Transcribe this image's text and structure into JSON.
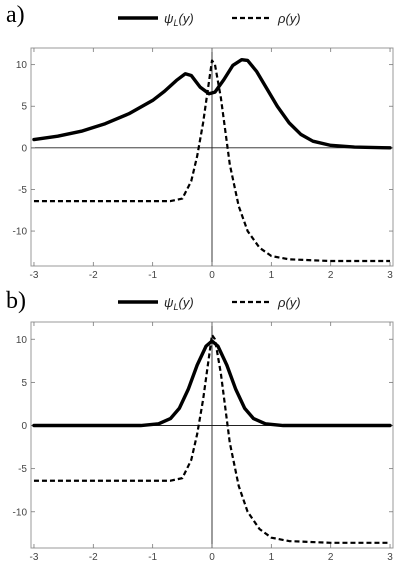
{
  "chart_data": [
    {
      "type": "line",
      "panel_label": "a)",
      "legend_position": "top",
      "grid": false,
      "xlim": [
        -3.05,
        3.05
      ],
      "ylim": [
        -14.2,
        12.0
      ],
      "x_ticks": [
        -3,
        -2,
        -1,
        0,
        1,
        2,
        3
      ],
      "y_ticks": [
        -10,
        -5,
        0,
        5,
        10
      ],
      "x_tick_labels": [
        "-3",
        "-2",
        "-1",
        "0",
        "1",
        "2",
        "3"
      ],
      "y_tick_labels": [
        "-10",
        "-5",
        "0",
        "5",
        "10"
      ],
      "series": [
        {
          "name": "ψL(y)",
          "name_main": "ψ",
          "name_sub": "L",
          "name_tail": "(y)",
          "style": "solid",
          "points": [
            [
              -3,
              1.0
            ],
            [
              -2.6,
              1.4
            ],
            [
              -2.2,
              2.0
            ],
            [
              -1.8,
              2.9
            ],
            [
              -1.4,
              4.1
            ],
            [
              -1.0,
              5.7
            ],
            [
              -0.8,
              6.8
            ],
            [
              -0.6,
              8.1
            ],
            [
              -0.45,
              8.9
            ],
            [
              -0.35,
              8.7
            ],
            [
              -0.2,
              7.3
            ],
            [
              -0.05,
              6.5
            ],
            [
              0.05,
              6.7
            ],
            [
              0.2,
              8.2
            ],
            [
              0.35,
              9.9
            ],
            [
              0.5,
              10.6
            ],
            [
              0.6,
              10.5
            ],
            [
              0.75,
              9.2
            ],
            [
              0.9,
              7.4
            ],
            [
              1.1,
              5.0
            ],
            [
              1.3,
              3.0
            ],
            [
              1.5,
              1.6
            ],
            [
              1.7,
              0.8
            ],
            [
              2.0,
              0.3
            ],
            [
              2.4,
              0.1
            ],
            [
              3.0,
              0.0
            ]
          ]
        },
        {
          "name": "ρ(y)",
          "name_main": "ρ",
          "name_sub": "",
          "name_tail": "(y)",
          "style": "dashed",
          "points": [
            [
              -3,
              -6.4
            ],
            [
              -1.5,
              -6.4
            ],
            [
              -0.7,
              -6.4
            ],
            [
              -0.5,
              -6.1
            ],
            [
              -0.35,
              -4.0
            ],
            [
              -0.25,
              -1.0
            ],
            [
              -0.15,
              3.0
            ],
            [
              -0.05,
              8.0
            ],
            [
              0.0,
              10.5
            ],
            [
              0.05,
              10.0
            ],
            [
              0.15,
              6.0
            ],
            [
              0.3,
              -2.0
            ],
            [
              0.45,
              -7.0
            ],
            [
              0.6,
              -10.0
            ],
            [
              0.8,
              -12.0
            ],
            [
              1.0,
              -13.0
            ],
            [
              1.3,
              -13.4
            ],
            [
              2.0,
              -13.6
            ],
            [
              3.0,
              -13.6
            ]
          ]
        }
      ]
    },
    {
      "type": "line",
      "panel_label": "b)",
      "legend_position": "top",
      "grid": false,
      "xlim": [
        -3.05,
        3.05
      ],
      "ylim": [
        -14.2,
        12.0
      ],
      "x_ticks": [
        -3,
        -2,
        -1,
        0,
        1,
        2,
        3
      ],
      "y_ticks": [
        -10,
        -5,
        0,
        5,
        10
      ],
      "x_tick_labels": [
        "-3",
        "-2",
        "-1",
        "0",
        "1",
        "2",
        "3"
      ],
      "y_tick_labels": [
        "-10",
        "-5",
        "0",
        "5",
        "10"
      ],
      "series": [
        {
          "name": "ψL(y)",
          "name_main": "ψ",
          "name_sub": "L",
          "name_tail": "(y)",
          "style": "solid",
          "points": [
            [
              -3,
              0.0
            ],
            [
              -1.2,
              0.0
            ],
            [
              -0.9,
              0.2
            ],
            [
              -0.7,
              0.8
            ],
            [
              -0.55,
              2.0
            ],
            [
              -0.4,
              4.2
            ],
            [
              -0.25,
              7.0
            ],
            [
              -0.1,
              9.2
            ],
            [
              0.0,
              9.8
            ],
            [
              0.1,
              9.2
            ],
            [
              0.25,
              7.0
            ],
            [
              0.4,
              4.2
            ],
            [
              0.55,
              2.0
            ],
            [
              0.7,
              0.8
            ],
            [
              0.9,
              0.2
            ],
            [
              1.2,
              0.0
            ],
            [
              3.0,
              0.0
            ]
          ]
        },
        {
          "name": "ρ(y)",
          "name_main": "ρ",
          "name_sub": "",
          "name_tail": "(y)",
          "style": "dashed",
          "points": [
            [
              -3,
              -6.4
            ],
            [
              -1.5,
              -6.4
            ],
            [
              -0.7,
              -6.4
            ],
            [
              -0.5,
              -6.1
            ],
            [
              -0.35,
              -4.0
            ],
            [
              -0.25,
              -1.0
            ],
            [
              -0.15,
              3.0
            ],
            [
              -0.05,
              8.0
            ],
            [
              0.0,
              10.5
            ],
            [
              0.05,
              10.0
            ],
            [
              0.15,
              6.0
            ],
            [
              0.3,
              -2.0
            ],
            [
              0.45,
              -7.0
            ],
            [
              0.6,
              -10.0
            ],
            [
              0.8,
              -12.0
            ],
            [
              1.0,
              -13.0
            ],
            [
              1.3,
              -13.4
            ],
            [
              2.0,
              -13.6
            ],
            [
              3.0,
              -13.6
            ]
          ]
        }
      ]
    }
  ]
}
